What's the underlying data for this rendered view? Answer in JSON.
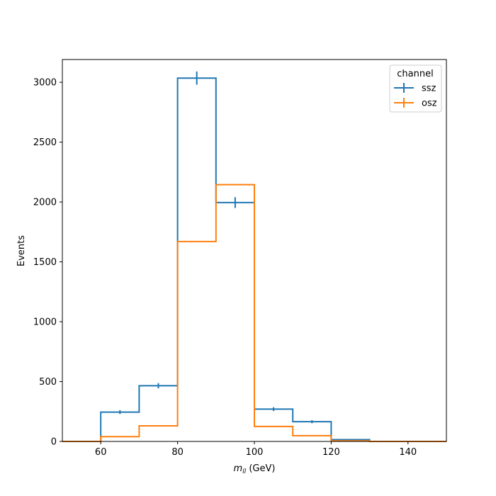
{
  "chart_data": {
    "type": "histogram-step",
    "xlabel": "m",
    "xlabel_sub": "ll",
    "xlabel_unit": " (GeV)",
    "ylabel": "Events",
    "xlim": [
      50,
      150
    ],
    "ylim": [
      0,
      3190
    ],
    "xticks": [
      60,
      80,
      100,
      120,
      140
    ],
    "yticks": [
      0,
      500,
      1000,
      1500,
      2000,
      2500,
      3000
    ],
    "bin_edges": [
      50,
      60,
      70,
      80,
      90,
      100,
      110,
      120,
      130,
      140,
      150
    ],
    "series": [
      {
        "name": "ssz",
        "color": "#1f77b4",
        "values": [
          0,
          245,
          465,
          3035,
          1995,
          270,
          165,
          15,
          0,
          0
        ],
        "errors": [
          0,
          16,
          22,
          55,
          45,
          16,
          13,
          4,
          0,
          0
        ]
      },
      {
        "name": "osz",
        "color": "#ff7f0e",
        "values": [
          0,
          40,
          130,
          1670,
          2145,
          125,
          48,
          5,
          0,
          0
        ],
        "errors": [
          0,
          0,
          0,
          0,
          0,
          0,
          0,
          0,
          0,
          0
        ]
      }
    ],
    "legend": {
      "title": "channel",
      "location": "upper right"
    },
    "grid": false
  }
}
